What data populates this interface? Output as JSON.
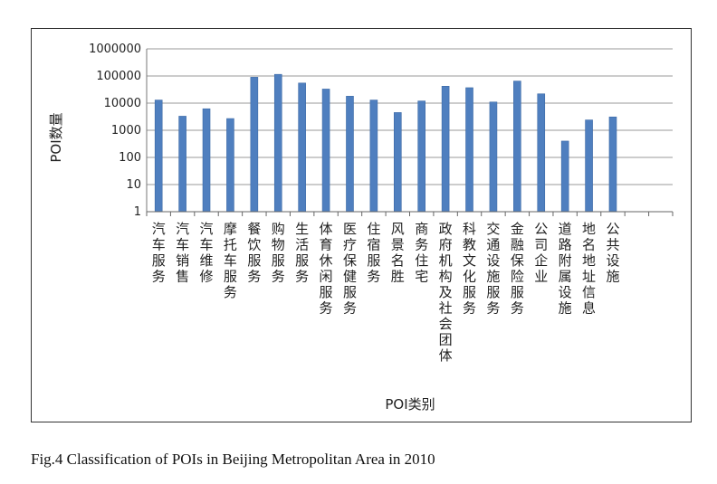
{
  "chart_data": {
    "type": "bar",
    "scale": "log",
    "ylim": [
      1,
      1000000
    ],
    "yticks": [
      "1",
      "10",
      "100",
      "1000",
      "10000",
      "100000",
      "1000000"
    ],
    "grid": true,
    "legend": "none",
    "bar_color": "#4f7fbf",
    "ylabel": "POI数量",
    "xlabel": "POI类别",
    "categories": [
      "汽车服务",
      "汽车销售",
      "汽车维修",
      "摩托车服务",
      "餐饮服务",
      "购物服务",
      "生活服务",
      "体育休闲服务",
      "医疗保健服务",
      "住宿服务",
      "风景名胜",
      "商务住宅",
      "政府机构及社会团体",
      "科教文化服务",
      "交通设施服务",
      "金融保险服务",
      "公司企业",
      "道路附属设施",
      "地名地址信息",
      "公共设施"
    ],
    "values": [
      13000,
      3300,
      6200,
      2700,
      90000,
      115000,
      55000,
      33000,
      18000,
      13000,
      4500,
      12000,
      42000,
      37000,
      11000,
      65000,
      22000,
      400,
      2400,
      3100
    ]
  },
  "caption": "Fig.4  Classification of POIs in Beijing Metropolitan Area in 2010"
}
